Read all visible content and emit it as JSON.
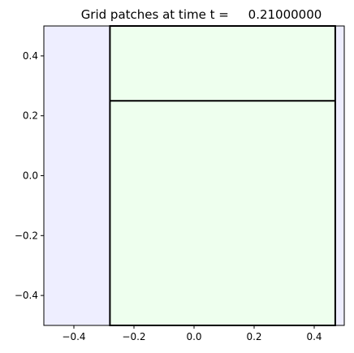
{
  "chart_data": {
    "type": "heatmap",
    "title": "Grid patches at time t =     0.21000000",
    "xlabel": "",
    "ylabel": "",
    "xlim": [
      -0.5,
      0.5
    ],
    "ylim": [
      -0.5,
      0.5
    ],
    "grid": false,
    "xticks": [
      -0.4,
      -0.2,
      0.0,
      0.2,
      0.4
    ],
    "yticks": [
      -0.4,
      -0.2,
      0.0,
      0.2,
      0.4
    ],
    "xtick_labels": [
      "−0.4",
      "−0.2",
      "0.0",
      "0.2",
      "0.4"
    ],
    "ytick_labels": [
      "−0.4",
      "−0.2",
      "0.0",
      "0.2",
      "0.4"
    ],
    "patches": [
      {
        "level": 1,
        "x": [
          -0.5,
          0.5
        ],
        "y": [
          -0.5,
          0.5
        ],
        "fill": "#eeeeff",
        "outline": false
      },
      {
        "level": 2,
        "x": [
          -0.28,
          0.47
        ],
        "y": [
          -0.5,
          0.5
        ],
        "fill": "#eeffee",
        "outline": true
      }
    ],
    "grid_lines": [
      {
        "x": [
          -0.28,
          0.47
        ],
        "y": [
          0.25,
          0.25
        ]
      }
    ]
  }
}
